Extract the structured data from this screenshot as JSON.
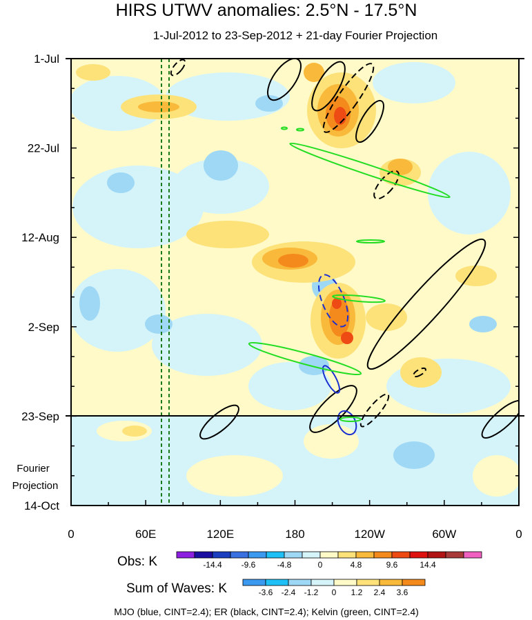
{
  "chart_data": {
    "type": "heatmap",
    "title": "HIRS UTWV anomalies: 2.5°N - 17.5°N",
    "subtitle": "1-Jul-2012 to 23-Sep-2012 + 21-day Fourier Projection",
    "x_ticks": [
      "0",
      "60E",
      "120E",
      "180",
      "120W",
      "60W",
      "0"
    ],
    "y_ticks": [
      "1-Jul",
      "22-Jul",
      "12-Aug",
      "2-Sep",
      "23-Sep",
      "14-Oct"
    ],
    "projection_label_1": "Fourier",
    "projection_label_2": "Projection",
    "obs_colorbar": {
      "label": "Obs: K",
      "colors": [
        "#8c1fe0",
        "#1a0fa0",
        "#1c3fc0",
        "#3a70e0",
        "#3b9af0",
        "#1ec0f5",
        "#9fd8f5",
        "#d4f4fa",
        "#fffac8",
        "#fde27a",
        "#f9b93a",
        "#f58a1c",
        "#ee4a14",
        "#de1010",
        "#b01414",
        "#a83a3a",
        "#f060c0"
      ],
      "tick_labels": [
        "-14.4",
        "-9.6",
        "-4.8",
        "0",
        "4.8",
        "9.6",
        "14.4"
      ]
    },
    "waves_colorbar": {
      "label": "Sum of Waves: K",
      "colors": [
        "#3b9af0",
        "#1ec0f5",
        "#9fd8f5",
        "#d4f4fa",
        "#fffac8",
        "#fde27a",
        "#f9b93a",
        "#f58a1c"
      ],
      "tick_labels": [
        "-3.6",
        "-2.4",
        "-1.2",
        "0",
        "1.2",
        "2.4",
        "3.6"
      ]
    },
    "contour_legend": "MJO (blue, CINT=2.4); ER (black, CINT=2.4); Kelvin (green, CINT=2.4)"
  }
}
